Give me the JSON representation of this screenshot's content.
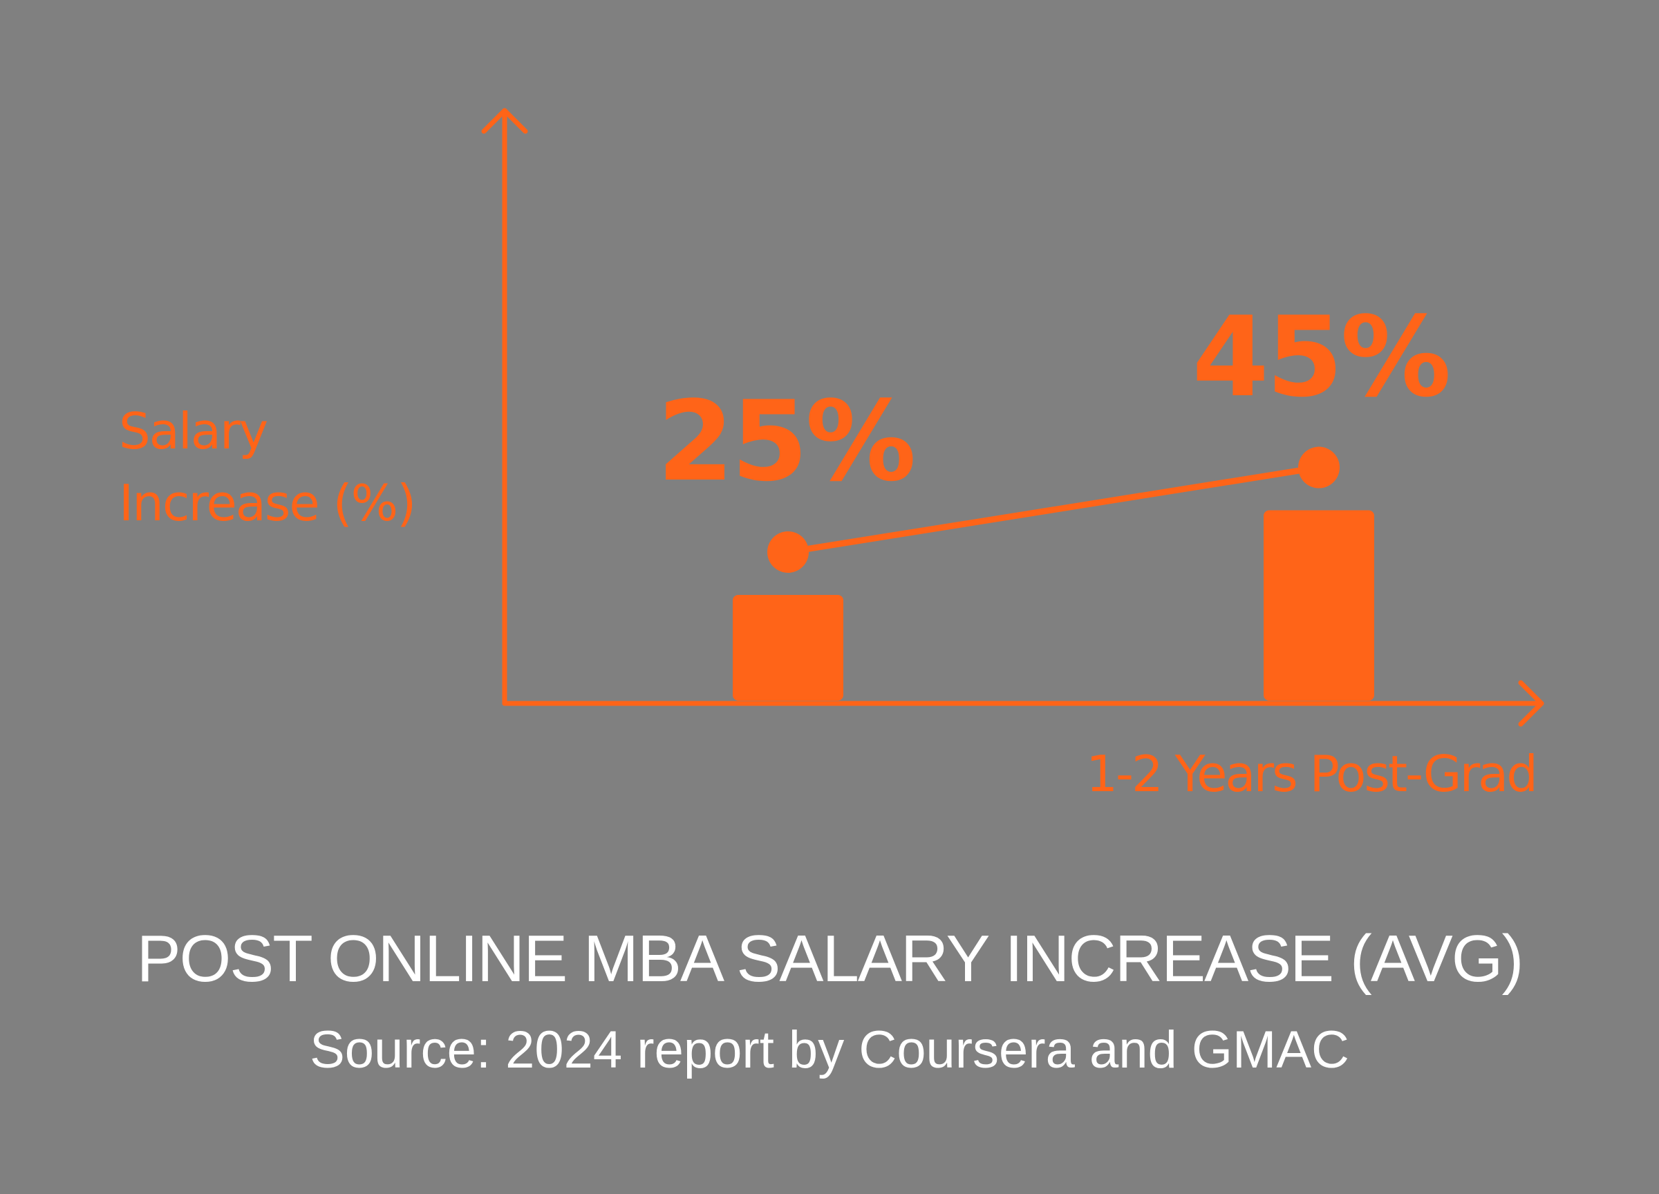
{
  "colors": {
    "background": "#808080",
    "accent": "#ff6418",
    "title_text": "#ffffff"
  },
  "chart_data": {
    "type": "bar",
    "categories": [
      "",
      ""
    ],
    "values": [
      25,
      45
    ],
    "data_labels": [
      "25%",
      "45%"
    ],
    "ylabel_lines": [
      "Salary",
      "Increase (%)"
    ],
    "xlabel": "1-2 Years Post-Grad",
    "ylim": [
      0,
      100
    ],
    "grid": false,
    "overlay": "line connecting markers above each bar"
  },
  "title": "POST ONLINE MBA SALARY INCREASE (AVG)",
  "subtitle": "Source: 2024 report by Coursera and GMAC"
}
